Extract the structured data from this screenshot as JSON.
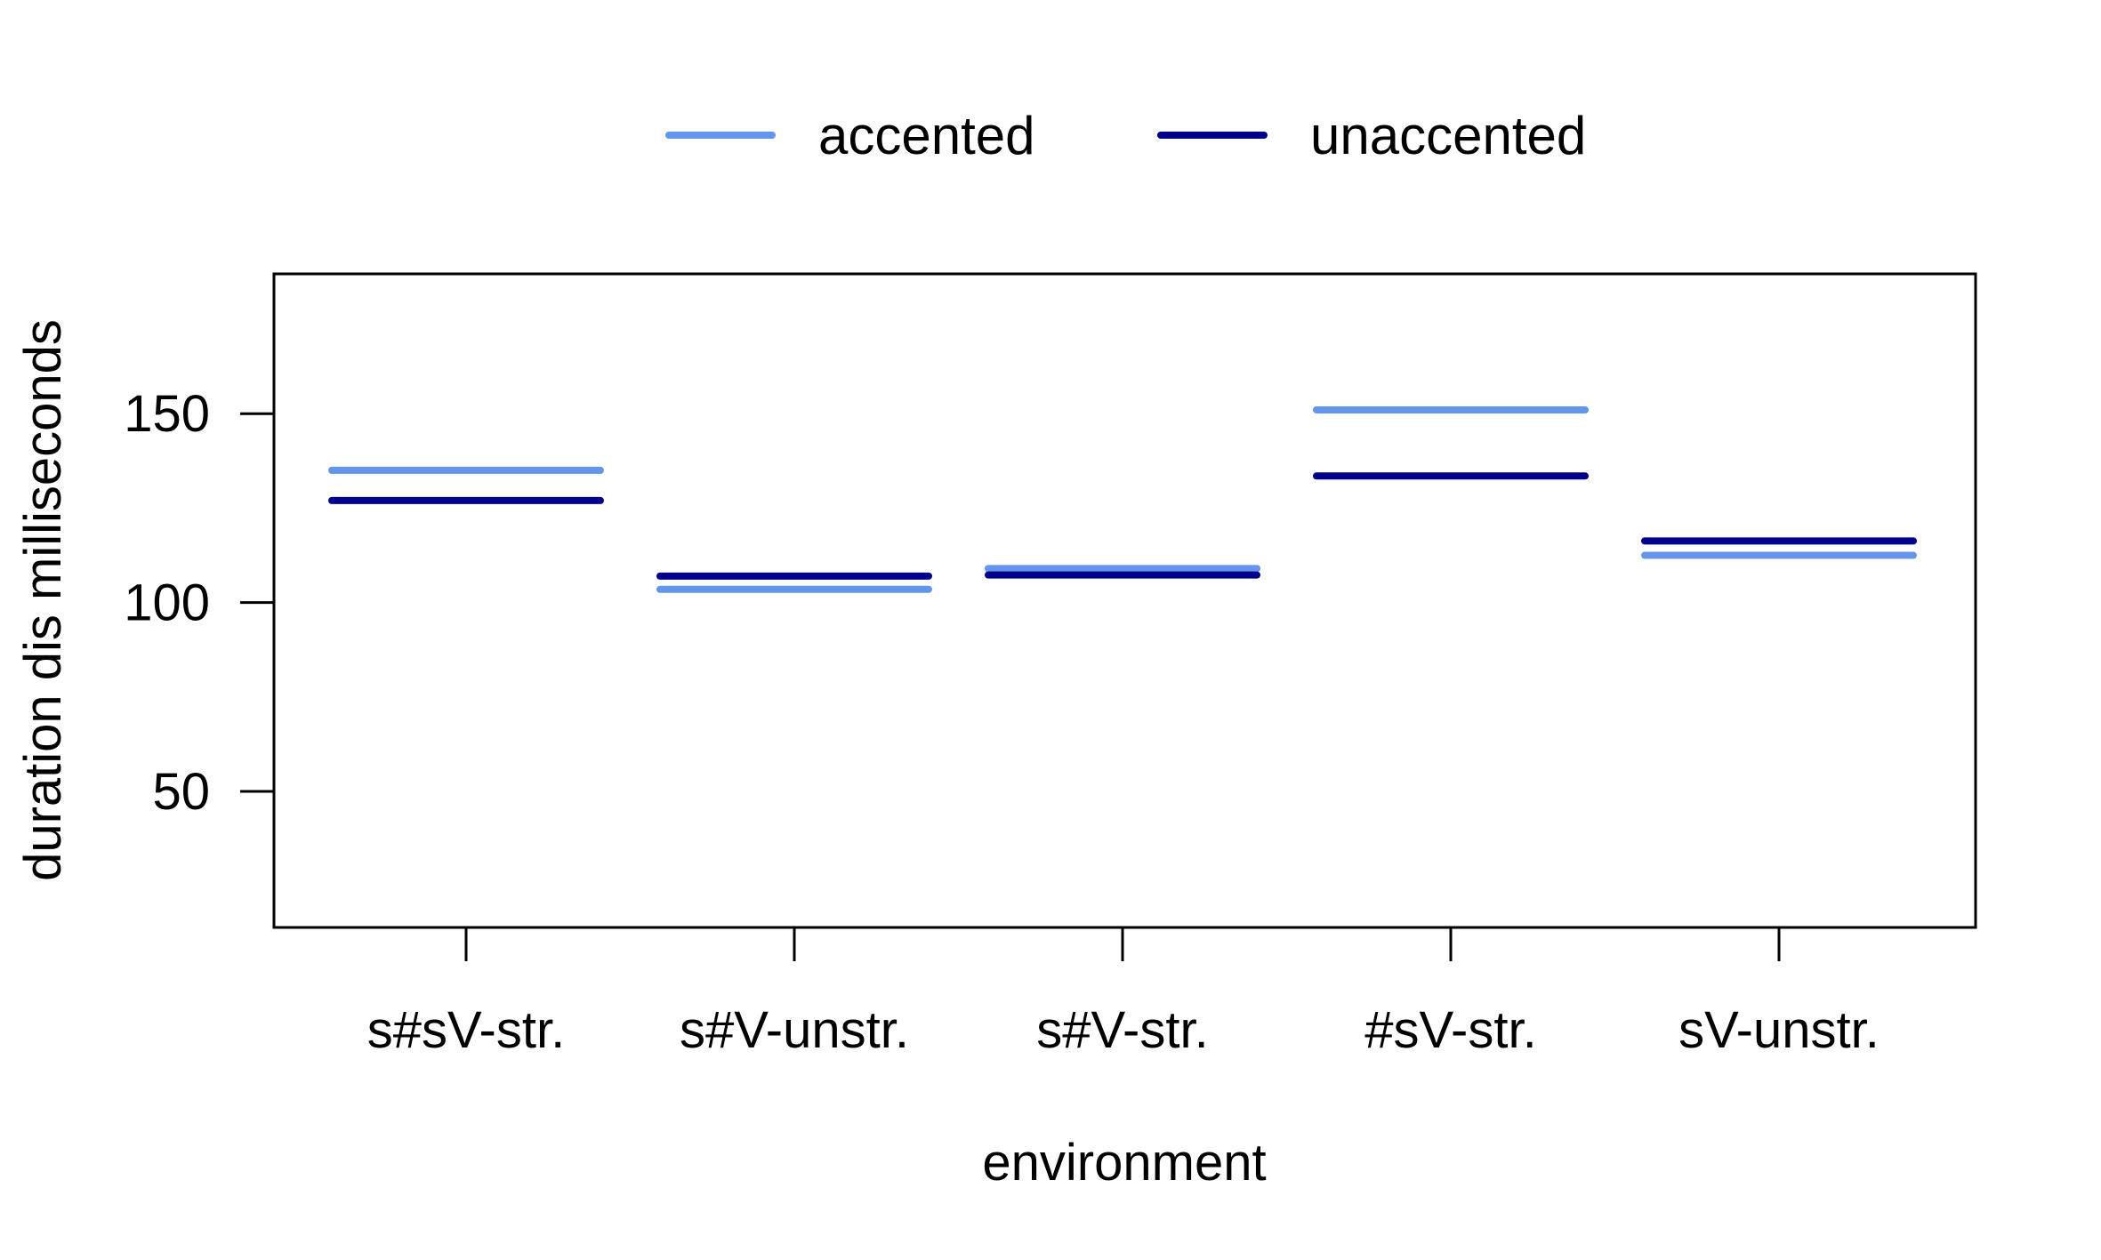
{
  "chart_data": {
    "type": "line",
    "title": "",
    "xlabel": "environment",
    "ylabel": "duration dis milliseconds",
    "categories": [
      "s#sV-str.",
      "s#V-unstr.",
      "s#V-str.",
      "#sV-str.",
      "sV-unstr."
    ],
    "series": [
      {
        "name": "accented",
        "color": "#6495ED",
        "values": [
          135,
          103.5,
          109,
          151,
          112.5
        ]
      },
      {
        "name": "unaccented",
        "color": "#00008B",
        "values": [
          127,
          107,
          107.3,
          133.5,
          116.3
        ]
      }
    ],
    "ylim": [
      14,
      187
    ],
    "yticks": [
      50,
      100,
      150
    ],
    "grid": false,
    "legend_position": "top-center"
  }
}
